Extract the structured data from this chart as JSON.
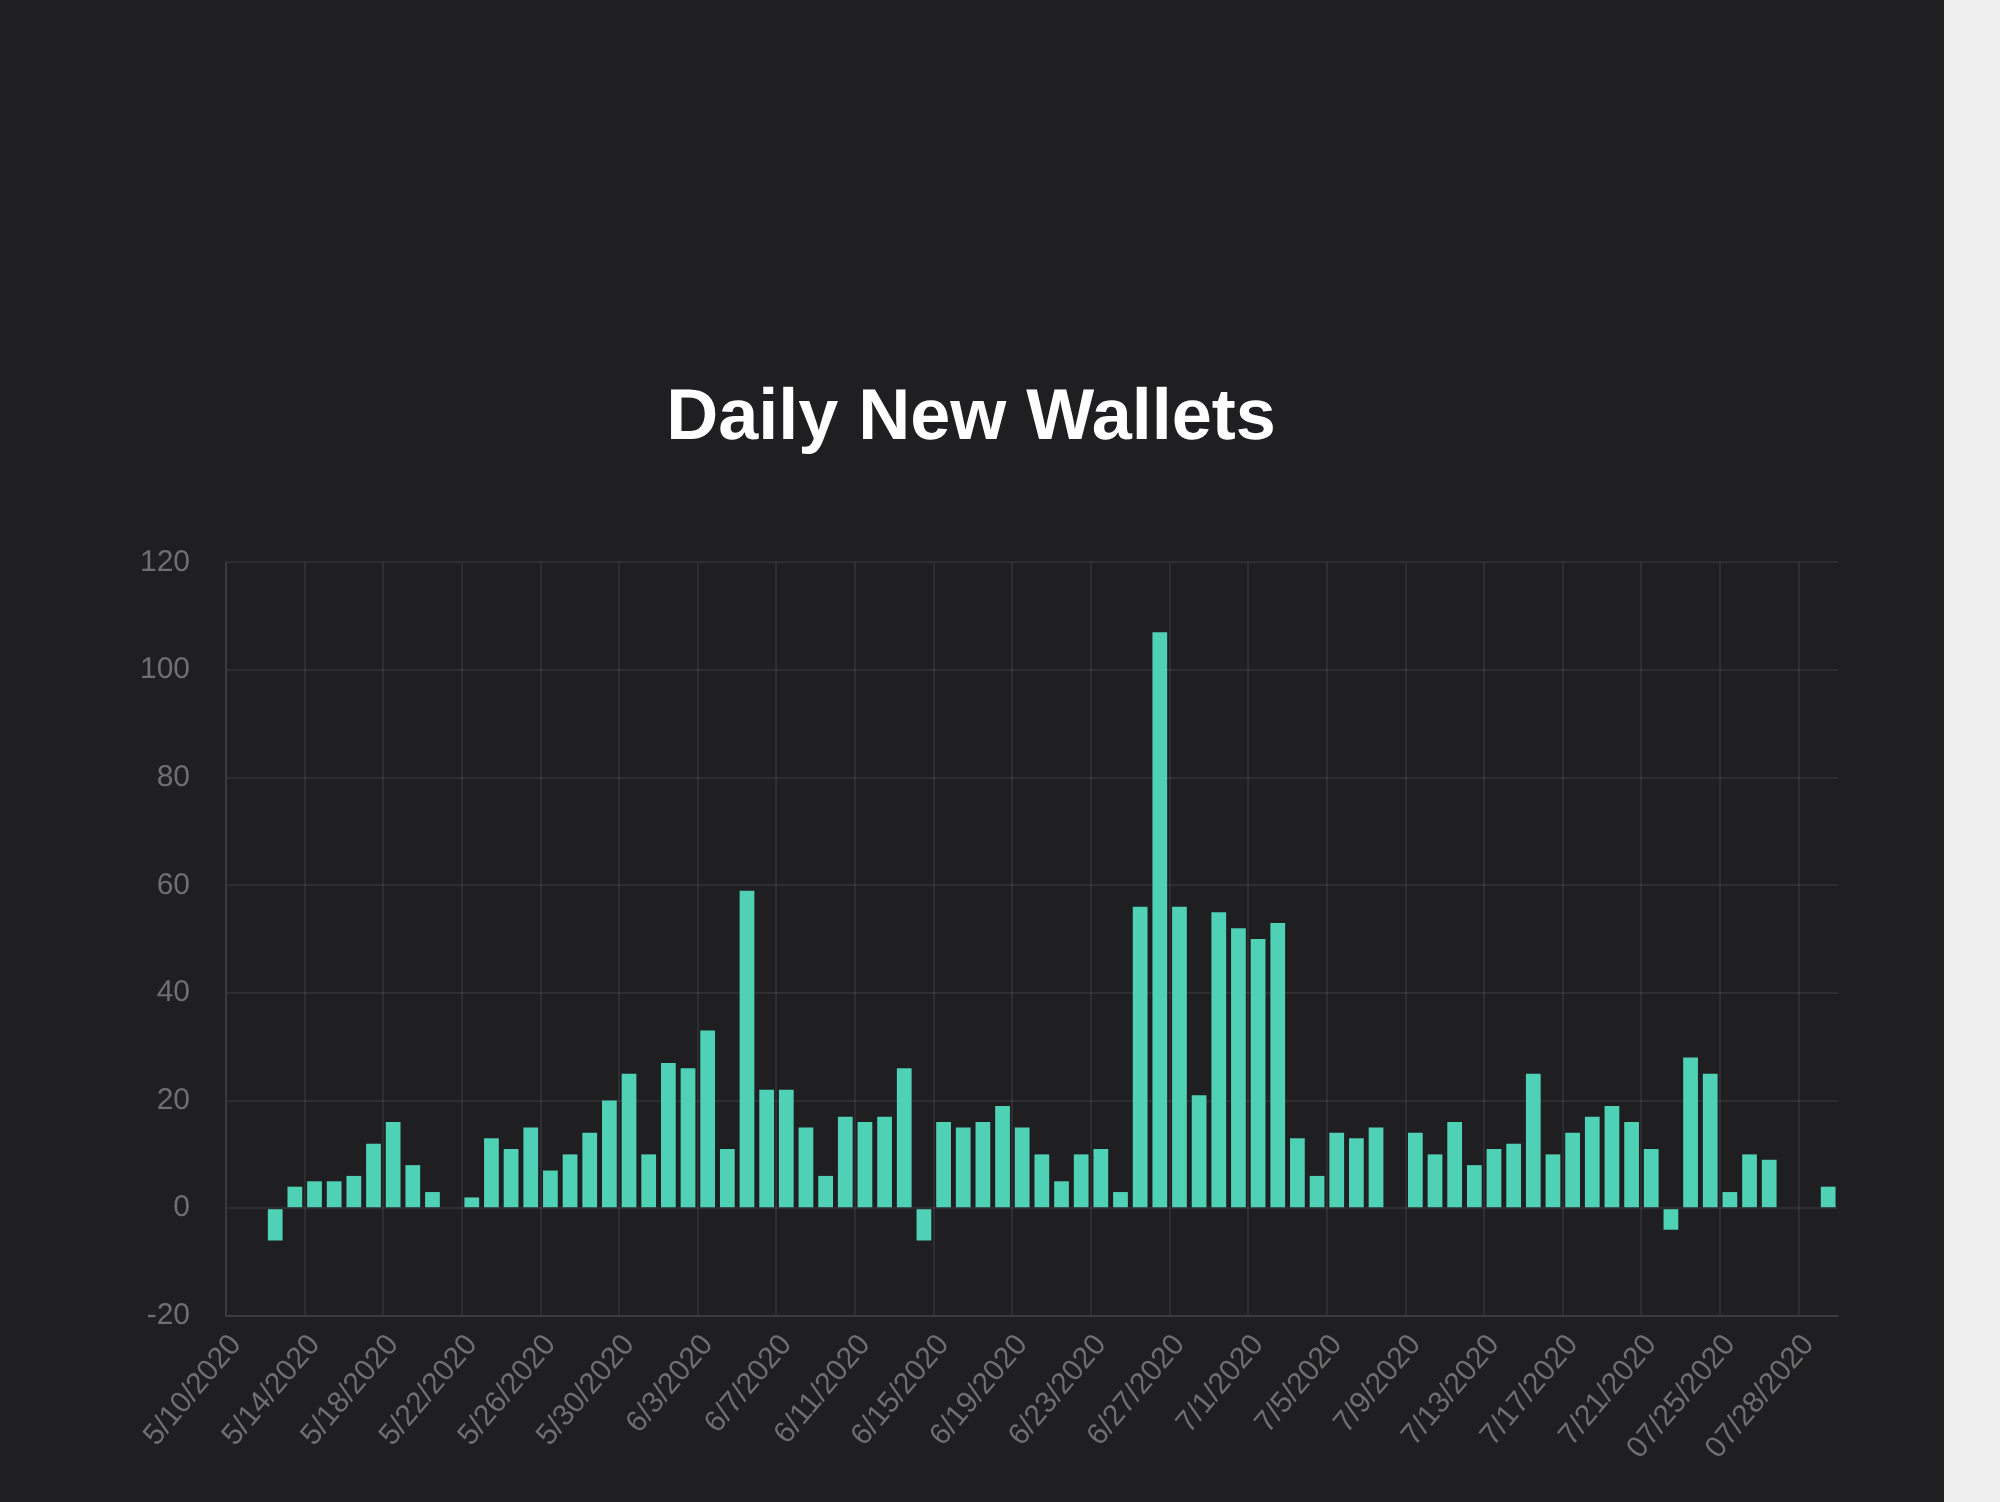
{
  "chart_data": {
    "type": "bar",
    "title": "Daily New Wallets",
    "categories": [
      "5/10/2020",
      null,
      null,
      null,
      "5/14/2020",
      null,
      null,
      null,
      "5/18/2020",
      null,
      null,
      null,
      "5/22/2020",
      null,
      null,
      null,
      "5/26/2020",
      null,
      null,
      null,
      "5/30/2020",
      null,
      null,
      null,
      "6/3/2020",
      null,
      null,
      null,
      "6/7/2020",
      null,
      null,
      null,
      "6/11/2020",
      null,
      null,
      null,
      "6/15/2020",
      null,
      null,
      null,
      "6/19/2020",
      null,
      null,
      null,
      "6/23/2020",
      null,
      null,
      null,
      "6/27/2020",
      null,
      null,
      null,
      "7/1/2020",
      null,
      null,
      null,
      "7/5/2020",
      null,
      null,
      null,
      "7/9/2020",
      null,
      null,
      null,
      "7/13/2020",
      null,
      null,
      null,
      "7/17/2020",
      null,
      null,
      null,
      "7/21/2020",
      null,
      null,
      null,
      "07/25/2020",
      null,
      null,
      null,
      "07/28/2020",
      null
    ],
    "values": [
      0,
      0,
      -6,
      4,
      5,
      5,
      6,
      12,
      16,
      8,
      3,
      0,
      2,
      13,
      11,
      15,
      7,
      10,
      14,
      20,
      25,
      10,
      27,
      26,
      33,
      11,
      59,
      22,
      22,
      15,
      6,
      17,
      16,
      17,
      26,
      -6,
      16,
      15,
      16,
      19,
      15,
      10,
      5,
      10,
      11,
      3,
      56,
      107,
      56,
      21,
      55,
      52,
      50,
      53,
      13,
      6,
      14,
      13,
      15,
      0,
      14,
      10,
      16,
      8,
      11,
      12,
      25,
      10,
      14,
      17,
      19,
      16,
      11,
      -4,
      28,
      25,
      3,
      10,
      9,
      0,
      0,
      4
    ],
    "color": "#4fd1b6",
    "ylim": [
      -20,
      120
    ],
    "yticks": [
      -20,
      0,
      20,
      40,
      60,
      80,
      100,
      120
    ],
    "grid": true
  }
}
